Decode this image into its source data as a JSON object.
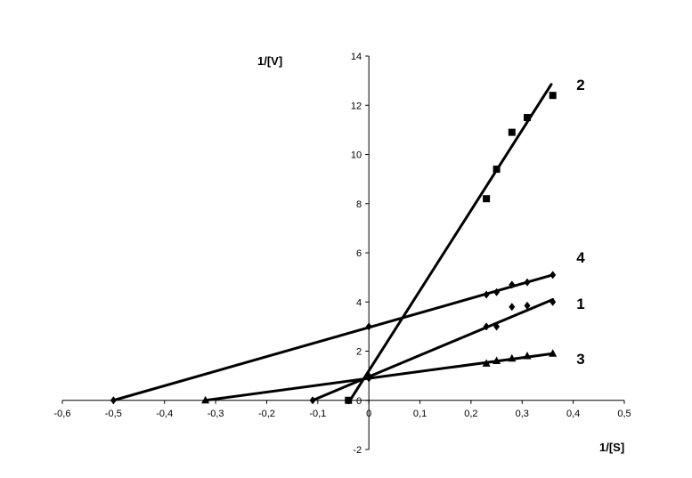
{
  "chart_data": {
    "type": "line",
    "title": "",
    "xlabel": "1/[S]",
    "ylabel": "1/[V]",
    "xlim": [
      -0.6,
      0.5
    ],
    "ylim": [
      -2,
      14
    ],
    "x_ticks": [
      "-0,6",
      "-0,5",
      "-0,4",
      "-0,3",
      "-0,2",
      "-0,1",
      "0",
      "0,1",
      "0,2",
      "0,3",
      "0,4",
      "0,5"
    ],
    "x_tick_values": [
      -0.6,
      -0.5,
      -0.4,
      -0.3,
      -0.2,
      -0.1,
      0,
      0.1,
      0.2,
      0.3,
      0.4,
      0.5
    ],
    "y_ticks": [
      "-2",
      "0",
      "2",
      "4",
      "6",
      "8",
      "10",
      "12",
      "14"
    ],
    "y_tick_values": [
      -2,
      0,
      2,
      4,
      6,
      8,
      10,
      12,
      14
    ],
    "grid": false,
    "color": "#000000",
    "series": [
      {
        "name": "2",
        "marker": "square",
        "points": [
          {
            "x": -0.04,
            "y": 0.0
          },
          {
            "x": 0.23,
            "y": 8.2
          },
          {
            "x": 0.25,
            "y": 9.4
          },
          {
            "x": 0.28,
            "y": 10.9
          },
          {
            "x": 0.31,
            "y": 11.5
          },
          {
            "x": 0.36,
            "y": 12.4
          }
        ],
        "line": {
          "x1": -0.04,
          "y1": -0.1,
          "x2": 0.357,
          "y2": 12.85
        }
      },
      {
        "name": "4",
        "marker": "diamond",
        "points": [
          {
            "x": -0.5,
            "y": 0.0
          },
          {
            "x": 0.0,
            "y": 3.0
          },
          {
            "x": 0.23,
            "y": 4.3
          },
          {
            "x": 0.25,
            "y": 4.4
          },
          {
            "x": 0.28,
            "y": 4.7
          },
          {
            "x": 0.31,
            "y": 4.8
          },
          {
            "x": 0.36,
            "y": 5.1
          }
        ],
        "line": {
          "x1": -0.5,
          "y1": 0.0,
          "x2": 0.36,
          "y2": 5.1
        }
      },
      {
        "name": "1",
        "marker": "diamond",
        "points": [
          {
            "x": -0.11,
            "y": 0.0
          },
          {
            "x": 0.0,
            "y": 0.9
          },
          {
            "x": 0.23,
            "y": 3.0
          },
          {
            "x": 0.25,
            "y": 3.0
          },
          {
            "x": 0.28,
            "y": 3.8
          },
          {
            "x": 0.31,
            "y": 3.85
          },
          {
            "x": 0.36,
            "y": 4.0
          }
        ],
        "line": {
          "x1": -0.11,
          "y1": 0.0,
          "x2": 0.36,
          "y2": 4.1
        }
      },
      {
        "name": "3",
        "marker": "triangle",
        "points": [
          {
            "x": -0.32,
            "y": 0.0
          },
          {
            "x": 0.0,
            "y": 1.0
          },
          {
            "x": 0.23,
            "y": 1.5
          },
          {
            "x": 0.25,
            "y": 1.6
          },
          {
            "x": 0.28,
            "y": 1.7
          },
          {
            "x": 0.31,
            "y": 1.8
          },
          {
            "x": 0.36,
            "y": 1.9
          }
        ],
        "line": {
          "x1": -0.32,
          "y1": 0.0,
          "x2": 0.36,
          "y2": 1.9
        }
      }
    ],
    "series_labels": [
      {
        "text": "2",
        "series": "2"
      },
      {
        "text": "4",
        "series": "4"
      },
      {
        "text": "1",
        "series": "1"
      },
      {
        "text": "3",
        "series": "3"
      }
    ]
  }
}
